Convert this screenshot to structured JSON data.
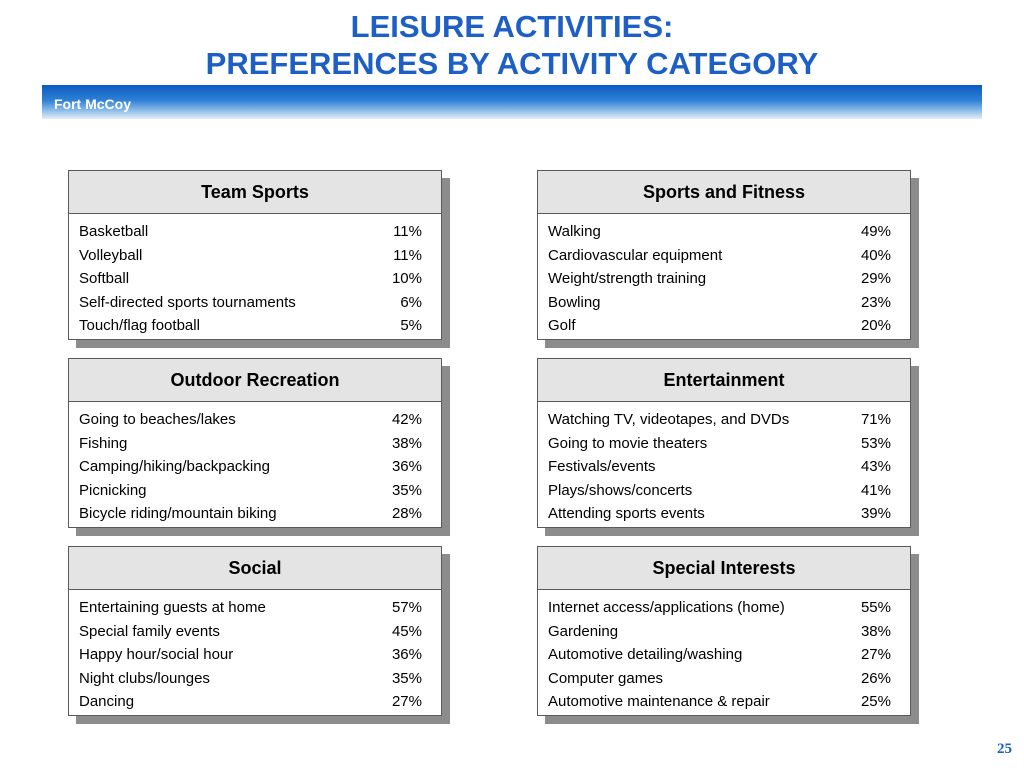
{
  "title": {
    "line1": "LEISURE ACTIVITIES:",
    "line2": "PREFERENCES BY ACTIVITY CATEGORY"
  },
  "banner": {
    "label": "Fort McCoy"
  },
  "categories": [
    {
      "title": "Team Sports",
      "items": [
        {
          "label": "Basketball",
          "pct": "11%"
        },
        {
          "label": "Volleyball",
          "pct": "11%"
        },
        {
          "label": "Softball",
          "pct": "10%"
        },
        {
          "label": "Self-directed sports tournaments",
          "pct": "6%"
        },
        {
          "label": "Touch/flag football",
          "pct": "5%"
        }
      ]
    },
    {
      "title": "Sports and Fitness",
      "items": [
        {
          "label": "Walking",
          "pct": "49%"
        },
        {
          "label": "Cardiovascular equipment",
          "pct": "40%"
        },
        {
          "label": "Weight/strength training",
          "pct": "29%"
        },
        {
          "label": "Bowling",
          "pct": "23%"
        },
        {
          "label": "Golf",
          "pct": "20%"
        }
      ]
    },
    {
      "title": "Outdoor Recreation",
      "items": [
        {
          "label": "Going to beaches/lakes",
          "pct": "42%"
        },
        {
          "label": "Fishing",
          "pct": "38%"
        },
        {
          "label": "Camping/hiking/backpacking",
          "pct": "36%"
        },
        {
          "label": "Picnicking",
          "pct": "35%"
        },
        {
          "label": "Bicycle riding/mountain biking",
          "pct": "28%"
        }
      ]
    },
    {
      "title": "Entertainment",
      "items": [
        {
          "label": "Watching TV, videotapes, and DVDs",
          "pct": "71%"
        },
        {
          "label": "Going to movie theaters",
          "pct": "53%"
        },
        {
          "label": "Festivals/events",
          "pct": "43%"
        },
        {
          "label": "Plays/shows/concerts",
          "pct": "41%"
        },
        {
          "label": "Attending sports events",
          "pct": "39%"
        }
      ]
    },
    {
      "title": "Social",
      "items": [
        {
          "label": "Entertaining guests at home",
          "pct": "57%"
        },
        {
          "label": "Special family events",
          "pct": "45%"
        },
        {
          "label": "Happy hour/social hour",
          "pct": "36%"
        },
        {
          "label": "Night clubs/lounges",
          "pct": "35%"
        },
        {
          "label": "Dancing",
          "pct": "27%"
        }
      ]
    },
    {
      "title": "Special Interests",
      "items": [
        {
          "label": "Internet access/applications (home)",
          "pct": "55%"
        },
        {
          "label": "Gardening",
          "pct": "38%"
        },
        {
          "label": "Automotive detailing/washing",
          "pct": "27%"
        },
        {
          "label": "Computer games",
          "pct": "26%"
        },
        {
          "label": "Automotive maintenance & repair",
          "pct": "25%"
        }
      ]
    }
  ],
  "page_number": "25"
}
